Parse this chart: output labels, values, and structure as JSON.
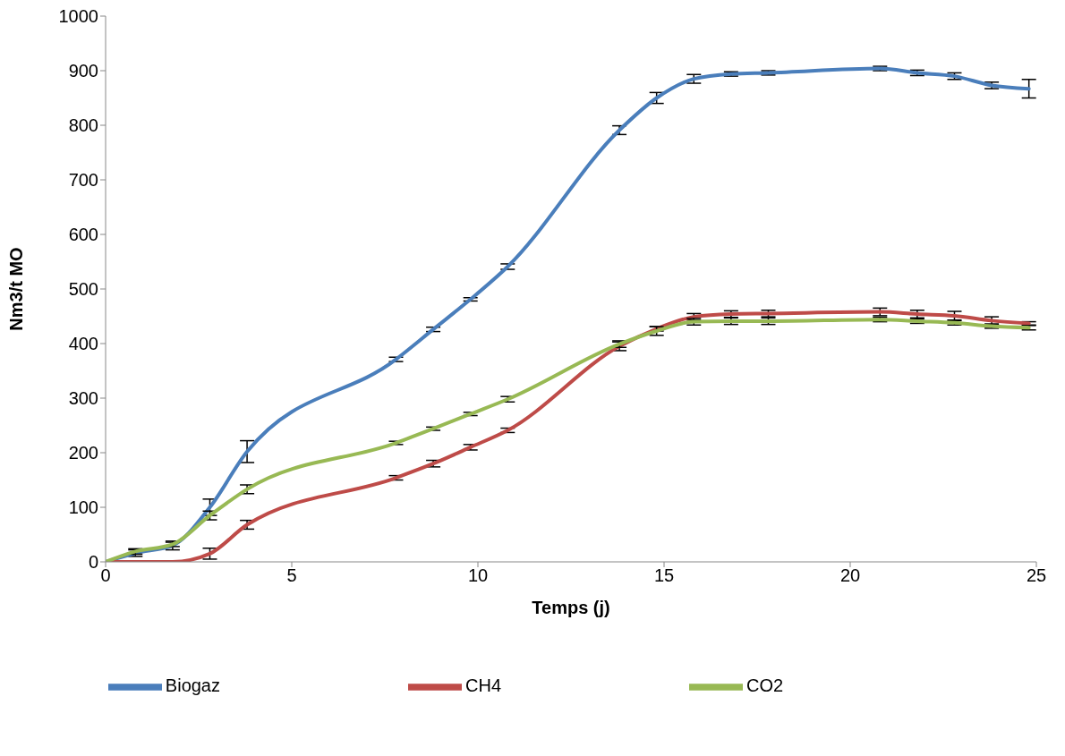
{
  "chart_data": {
    "type": "line",
    "xlabel": "Temps (j)",
    "ylabel": "Nm3/t MO",
    "x": [
      0,
      0.8,
      1.8,
      2.8,
      3.8,
      7.8,
      8.8,
      9.8,
      10.8,
      13.8,
      14.8,
      15.8,
      16.8,
      17.8,
      20.8,
      21.8,
      22.8,
      23.8,
      24.8
    ],
    "xlim": [
      0,
      25
    ],
    "xticks": [
      0,
      5,
      10,
      15,
      20,
      25
    ],
    "ylim": [
      0,
      1000
    ],
    "yticks": [
      0,
      100,
      200,
      300,
      400,
      500,
      600,
      700,
      800,
      900,
      1000
    ],
    "legend": "bottom",
    "marker": "none",
    "line_style": "solid",
    "series": [
      {
        "name": "Biogaz",
        "color": "#4a7ebb",
        "values": [
          0,
          16,
          30,
          100,
          202,
          371,
          426,
          481,
          541,
          791,
          850,
          885,
          894,
          896,
          904,
          896,
          890,
          873,
          867
        ],
        "errors": [
          null,
          6,
          8,
          15,
          20,
          4,
          4,
          3,
          5,
          8,
          10,
          8,
          4,
          4,
          4,
          5,
          6,
          6,
          17
        ]
      },
      {
        "name": "CH4",
        "color": "#be4b48",
        "values": [
          0,
          0,
          0,
          15,
          68,
          154,
          180,
          210,
          241,
          395,
          427,
          449,
          454,
          455,
          458,
          454,
          451,
          442,
          437
        ],
        "errors": [
          null,
          null,
          null,
          10,
          8,
          4,
          6,
          5,
          4,
          8,
          4,
          6,
          6,
          6,
          7,
          7,
          8,
          7,
          3
        ]
      },
      {
        "name": "CO2",
        "color": "#98b954",
        "values": [
          0,
          19,
          32,
          85,
          133,
          218,
          244,
          271,
          298,
          399,
          423,
          440,
          441,
          441,
          444,
          441,
          438,
          432,
          429
        ],
        "errors": [
          null,
          5,
          4,
          8,
          8,
          3,
          3,
          3,
          5,
          6,
          8,
          6,
          6,
          6,
          4,
          4,
          4,
          4,
          4
        ]
      }
    ]
  }
}
